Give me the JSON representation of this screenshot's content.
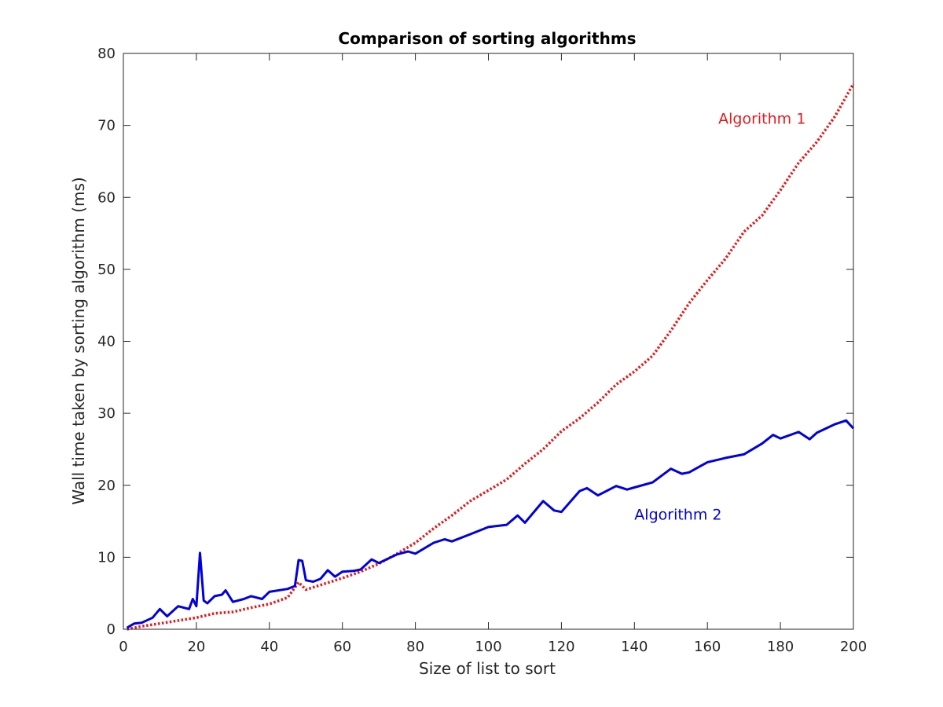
{
  "chart_data": {
    "type": "line",
    "title": "Comparison of sorting algorithms",
    "xlabel": "Size of list to sort",
    "ylabel": "Wall time taken by sorting algorithm (ms)",
    "xlim": [
      0,
      200
    ],
    "ylim": [
      0,
      80
    ],
    "xticks": [
      0,
      20,
      40,
      60,
      80,
      100,
      120,
      140,
      160,
      180,
      200
    ],
    "yticks": [
      0,
      10,
      20,
      30,
      40,
      50,
      60,
      70,
      80
    ],
    "grid": false,
    "legend": "none",
    "series": [
      {
        "name": "Algorithm 1",
        "color": "#e41a1c",
        "style": "dotted",
        "x": [
          1,
          5,
          10,
          15,
          20,
          25,
          30,
          35,
          40,
          45,
          48,
          50,
          55,
          60,
          65,
          70,
          75,
          80,
          85,
          90,
          95,
          100,
          105,
          110,
          115,
          120,
          125,
          130,
          135,
          140,
          145,
          150,
          155,
          160,
          165,
          170,
          175,
          180,
          185,
          190,
          195,
          200
        ],
        "y": [
          0.0,
          0.4,
          0.8,
          1.2,
          1.6,
          2.2,
          2.4,
          3.0,
          3.5,
          4.4,
          6.5,
          5.5,
          6.3,
          7.1,
          8.0,
          9.1,
          10.5,
          12.0,
          14.0,
          15.8,
          17.8,
          19.3,
          20.8,
          23.0,
          25.0,
          27.5,
          29.3,
          31.5,
          34.0,
          35.8,
          38.0,
          41.5,
          45.3,
          48.5,
          51.5,
          55.2,
          57.5,
          61.0,
          64.8,
          67.7,
          71.3,
          75.8
        ]
      },
      {
        "name": "Algorithm 2",
        "color": "#0000e0",
        "style": "solid",
        "x": [
          1,
          3,
          5,
          8,
          10,
          12,
          15,
          18,
          19,
          20,
          21,
          22,
          23,
          25,
          27,
          28,
          30,
          33,
          35,
          38,
          40,
          45,
          47,
          48,
          49,
          50,
          52,
          54,
          56,
          58,
          60,
          63,
          65,
          68,
          70,
          75,
          78,
          80,
          85,
          88,
          90,
          95,
          100,
          105,
          108,
          110,
          115,
          118,
          120,
          125,
          127,
          130,
          135,
          138,
          140,
          145,
          150,
          153,
          155,
          160,
          165,
          170,
          175,
          178,
          180,
          185,
          188,
          190,
          195,
          198,
          200
        ],
        "y": [
          0.2,
          0.8,
          0.9,
          1.6,
          2.8,
          1.8,
          3.2,
          2.8,
          4.2,
          3.2,
          10.6,
          4.0,
          3.6,
          4.6,
          4.8,
          5.4,
          3.8,
          4.2,
          4.6,
          4.2,
          5.2,
          5.6,
          6.0,
          9.6,
          9.5,
          6.8,
          6.6,
          7.0,
          8.2,
          7.3,
          8.0,
          8.1,
          8.3,
          9.7,
          9.2,
          10.4,
          10.8,
          10.5,
          12.0,
          12.5,
          12.2,
          13.2,
          14.2,
          14.5,
          15.8,
          14.8,
          17.8,
          16.5,
          16.3,
          19.2,
          19.6,
          18.6,
          19.9,
          19.4,
          19.7,
          20.4,
          22.3,
          21.6,
          21.8,
          23.2,
          23.8,
          24.3,
          25.8,
          27.0,
          26.5,
          27.4,
          26.4,
          27.3,
          28.5,
          29.0,
          27.9
        ]
      }
    ],
    "annotations": [
      {
        "text": "Algorithm 1",
        "color": "#e41a1c",
        "x": 163,
        "y": 71
      },
      {
        "text": "Algorithm 2",
        "color": "#0000e0",
        "x": 140,
        "y": 16
      }
    ]
  }
}
